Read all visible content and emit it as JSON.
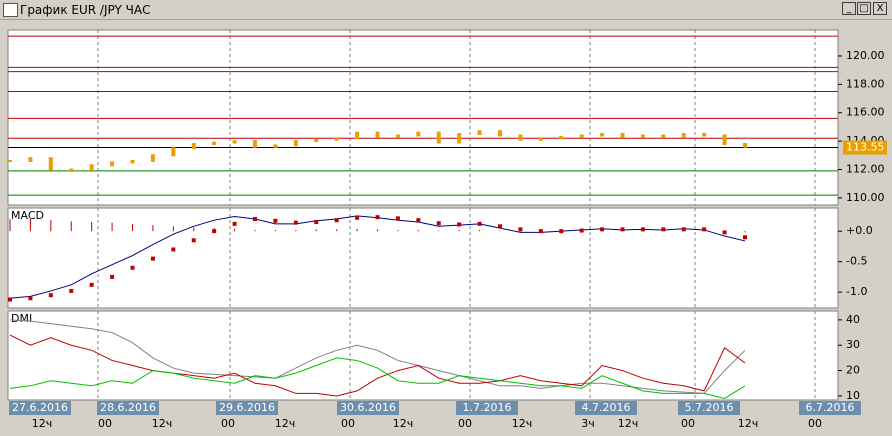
{
  "window": {
    "title": "График EUR /JPY ЧАС"
  },
  "chart_data": [
    {
      "type": "candlestick",
      "color": "#e8a000",
      "values": [
        112.6,
        112.8,
        112.0,
        111.9,
        112.3,
        112.5,
        112.6,
        113.0,
        113.5,
        113.8,
        113.9,
        114.0,
        113.6,
        113.7,
        114.0,
        114.1,
        114.2,
        114.6,
        114.3,
        114.4,
        114.6,
        113.9,
        114.5,
        114.7,
        114.4,
        114.1,
        114.2,
        114.3,
        114.4,
        114.5,
        114.3,
        114.4,
        114.3,
        114.5,
        114.4,
        113.8,
        113.6
      ],
      "ylim": [
        109.5,
        121.83
      ],
      "yticks": [
        {
          "value": 110,
          "label": "110.00"
        },
        {
          "value": 112,
          "label": "112.00"
        },
        {
          "value": 114,
          "label": "114.00"
        },
        {
          "value": 116,
          "label": "116.00"
        },
        {
          "value": 118,
          "label": "118.00"
        },
        {
          "value": 120,
          "label": "120.00"
        }
      ],
      "levels": [
        {
          "value": 121.4,
          "color": "#c00000"
        },
        {
          "value": 119.2,
          "color": "#c00000"
        },
        {
          "value": 118.9,
          "color": "#c00000"
        },
        {
          "value": 117.5,
          "color": "#c00000"
        },
        {
          "value": 115.6,
          "color": "#c00000"
        },
        {
          "value": 114.2,
          "color": "#c00000"
        },
        {
          "value": 113.55,
          "color": "#000000"
        },
        {
          "value": 111.9,
          "color": "#008000"
        },
        {
          "value": 110.2,
          "color": "#008000"
        }
      ],
      "last_price": 113.55
    },
    {
      "type": "macd",
      "title": "MACD",
      "series": [
        {
          "color": "#000080",
          "values": [
            -1.1,
            -1.07,
            -0.98,
            -0.88,
            -0.7,
            -0.55,
            -0.4,
            -0.22,
            -0.05,
            0.08,
            0.18,
            0.24,
            0.2,
            0.12,
            0.12,
            0.17,
            0.2,
            0.25,
            0.22,
            0.18,
            0.15,
            0.08,
            0.1,
            0.12,
            0.05,
            -0.02,
            -0.02,
            0.0,
            0.02,
            0.04,
            0.02,
            0.03,
            0.02,
            0.04,
            0.02,
            -0.08,
            -0.16
          ]
        },
        {
          "color": "#c00000",
          "values": [
            -1.12,
            -1.1,
            -1.05,
            -0.98,
            -0.88,
            -0.75,
            -0.6,
            -0.45,
            -0.3,
            -0.15,
            0.0,
            0.12,
            0.2,
            0.17,
            0.14,
            0.15,
            0.18,
            0.22,
            0.23,
            0.21,
            0.18,
            0.13,
            0.11,
            0.12,
            0.08,
            0.03,
            0.0,
            0.0,
            0.01,
            0.03,
            0.03,
            0.03,
            0.03,
            0.03,
            0.03,
            -0.02,
            -0.1
          ]
        }
      ],
      "histogram": {
        "color": "#c00000",
        "values": [
          0.2,
          0.2,
          0.18,
          0.16,
          0.15,
          0.14,
          0.12,
          0.1,
          0.08,
          0.06,
          0.05,
          0.04,
          0.02,
          0.02,
          0.02,
          0.03,
          0.03,
          0.04,
          0.03,
          0.02,
          0.02,
          0.01,
          0.02,
          0.02,
          0.01,
          0,
          0,
          0.01,
          0.01,
          0.01,
          0.01,
          0.01,
          0.01,
          0.01,
          0.01,
          0,
          -0.02
        ]
      },
      "ylim": [
        -1.26,
        0.38
      ],
      "yticks": [
        {
          "value": 0,
          "label": "+0.0"
        },
        {
          "value": -0.5,
          "label": "-0.5"
        },
        {
          "value": -1,
          "label": "-1.0"
        }
      ]
    },
    {
      "type": "line",
      "title": "DMI",
      "series": [
        {
          "color": "#808080",
          "values": [
            40,
            39.5,
            38.5,
            37.5,
            36.5,
            35,
            31,
            25,
            21,
            19,
            18.5,
            18,
            17.5,
            17,
            21,
            25,
            28,
            30,
            28,
            24,
            22,
            20,
            18,
            16,
            14,
            14,
            13,
            14,
            15,
            15,
            14,
            13,
            12,
            11.5,
            11,
            20,
            28
          ]
        },
        {
          "color": "#c00000",
          "values": [
            34,
            30,
            33,
            30,
            28,
            24,
            22,
            20,
            19,
            18,
            17,
            19,
            15,
            14,
            11,
            11,
            10,
            12,
            17,
            20,
            22,
            17,
            15,
            15,
            16,
            18,
            16,
            15,
            14,
            22,
            20,
            17,
            15,
            14,
            12,
            29,
            23
          ]
        },
        {
          "color": "#00c000",
          "values": [
            13,
            14,
            16,
            15,
            14,
            16,
            15,
            20,
            19,
            17,
            16,
            15,
            18,
            17,
            19,
            22,
            25,
            24,
            21,
            16,
            15,
            15,
            18,
            17,
            16,
            15,
            14,
            14,
            13,
            18,
            15,
            12,
            11,
            11,
            11,
            9,
            14
          ]
        }
      ],
      "ylim": [
        8.4,
        43.5
      ],
      "yticks": [
        40,
        30,
        20,
        10
      ]
    }
  ],
  "time_axis": {
    "dates": [
      "27.6.2016",
      "28.6.2016",
      "29.6.2016",
      "30.6.2016",
      "1.7.2016",
      "4.7.2016",
      "5.7.2016",
      "6.7.2016"
    ],
    "hours": [
      "12ч",
      "00",
      "12ч",
      "00",
      "12ч",
      "00",
      "12ч",
      "00",
      "12ч",
      "3ч",
      "12ч",
      "00",
      "12ч",
      "00"
    ]
  }
}
